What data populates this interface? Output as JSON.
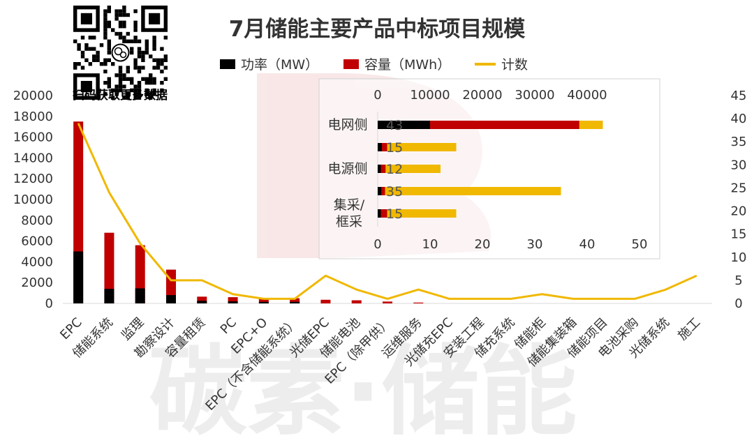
{
  "title": "7月储能主要产品中标项目规模",
  "qr_caption": "扫码获取更多数据",
  "watermark": {
    "text": "碳素·储能",
    "letter": "B"
  },
  "legend": [
    {
      "label": "功率（MW）",
      "color": "#000000",
      "kind": "box"
    },
    {
      "label": "容量（MWh）",
      "color": "#c00000",
      "kind": "box"
    },
    {
      "label": "计数",
      "color": "#f0b800",
      "kind": "line"
    }
  ],
  "colors": {
    "power": "#000000",
    "capacity": "#c00000",
    "count": "#f0b800",
    "inset_count": "#f0b800",
    "axis": "#d9d9d9",
    "text": "#333333"
  },
  "chart_data": [
    {
      "type": "bar",
      "categories": [
        "EPC",
        "储能系统",
        "监理",
        "勘察设计",
        "容量租赁",
        "PC",
        "EPC+O",
        "EPC（不含储能系统）",
        "光储EPC",
        "储能电池",
        "EPC（除甲供）",
        "运维服务",
        "光储充EPC",
        "安装工程",
        "储充系统",
        "储能柜",
        "储能集装箱",
        "储能项目",
        "电池采购",
        "光储系统",
        "施工"
      ],
      "series": [
        {
          "name": "功率（MW）",
          "values": [
            5000,
            1400,
            1450,
            800,
            250,
            200,
            150,
            150,
            0,
            0,
            0,
            0,
            0,
            0,
            0,
            0,
            0,
            0,
            0,
            0,
            0
          ]
        },
        {
          "name": "容量（MWh）",
          "values": [
            17500,
            6800,
            5600,
            3250,
            650,
            600,
            450,
            500,
            350,
            300,
            180,
            80,
            0,
            0,
            0,
            0,
            0,
            0,
            0,
            0,
            0
          ]
        },
        {
          "name": "计数",
          "values": [
            39,
            24,
            13,
            5,
            5,
            2,
            1,
            1,
            6,
            3,
            1,
            3,
            1,
            1,
            1,
            2,
            1,
            1,
            1,
            3,
            6
          ],
          "axis": "right"
        }
      ],
      "yticks_left": [
        0,
        2000,
        4000,
        6000,
        8000,
        10000,
        12000,
        14000,
        16000,
        18000,
        20000
      ],
      "ylim_left": [
        0,
        20000
      ],
      "yticks_right": [
        0,
        5,
        10,
        15,
        20,
        25,
        30,
        35,
        40,
        45
      ],
      "ylim_right": [
        0,
        45
      ]
    },
    {
      "type": "bar",
      "orientation": "horizontal",
      "group_labels": [
        "电网侧",
        "电源侧",
        "集采/框采"
      ],
      "rows": [
        {
          "group": "电网侧",
          "power": 10000,
          "capacity": 38500,
          "count": 43
        },
        {
          "group": "",
          "power": 800,
          "capacity": 1800,
          "count": 15
        },
        {
          "group": "电源侧",
          "power": 600,
          "capacity": 1500,
          "count": 12
        },
        {
          "group": "",
          "power": 700,
          "capacity": 1400,
          "count": 35
        },
        {
          "group": "集采/框采",
          "power": 600,
          "capacity": 1800,
          "count": 15
        }
      ],
      "xticks_top": [
        0,
        10000,
        20000,
        30000,
        40000
      ],
      "xlim_top": [
        0,
        50000
      ],
      "xticks_bottom": [
        0,
        10,
        20,
        30,
        40,
        50
      ],
      "xlim_bottom": [
        0,
        50
      ]
    }
  ]
}
